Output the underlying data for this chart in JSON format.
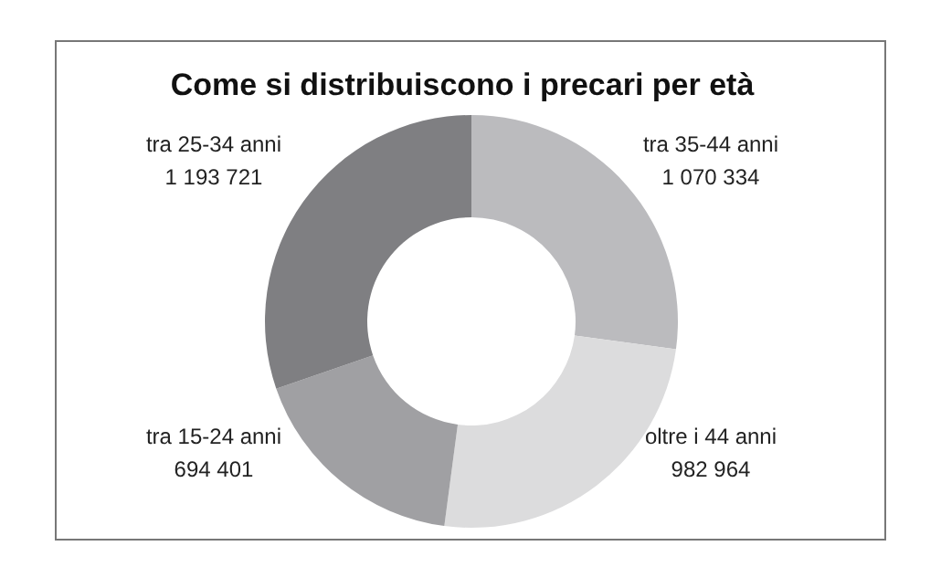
{
  "chart_data": {
    "type": "donut",
    "title": "Come si distribuiscono i precari per età",
    "categories": [
      "tra 35-44 anni",
      "oltre i 44 anni",
      "tra 15-24 anni",
      "tra 25-34 anni"
    ],
    "values": [
      1070334,
      982964,
      694401,
      1193721
    ],
    "value_labels": [
      "1 070 334",
      "982 964",
      "694 401",
      "1 193 721"
    ],
    "colors": [
      "#bbbbbe",
      "#dcdcdd",
      "#a0a0a3",
      "#7f7f82"
    ],
    "legend": false
  }
}
